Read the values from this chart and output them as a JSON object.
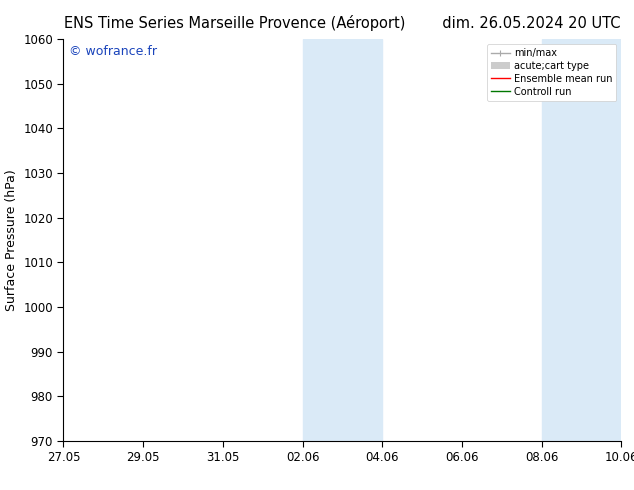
{
  "title_left": "ENS Time Series Marseille Provence (Aéroport)",
  "title_right": "dim. 26.05.2024 20 UTC",
  "ylabel": "Surface Pressure (hPa)",
  "ylim": [
    970,
    1060
  ],
  "yticks": [
    970,
    980,
    990,
    1000,
    1010,
    1020,
    1030,
    1040,
    1050,
    1060
  ],
  "xtick_labels": [
    "27.05",
    "29.05",
    "31.05",
    "02.06",
    "04.06",
    "06.06",
    "08.06",
    "10.06"
  ],
  "watermark": "© wofrance.fr",
  "watermark_color": "#1a44bb",
  "background_color": "#ffffff",
  "shaded_bands": [
    {
      "xmin": 0.4286,
      "xmax": 0.5714
    },
    {
      "xmin": 0.8571,
      "xmax": 1.0
    }
  ],
  "shaded_color": "#daeaf7",
  "legend_items": [
    {
      "label": "min/max",
      "color": "#aaaaaa",
      "lw": 1.0
    },
    {
      "label": "acute;cart type",
      "color": "#cccccc",
      "lw": 6
    },
    {
      "label": "Ensemble mean run",
      "color": "#ff0000",
      "lw": 1.0
    },
    {
      "label": "Controll run",
      "color": "#007700",
      "lw": 1.0
    }
  ],
  "spine_color": "#000000",
  "tick_color": "#000000",
  "tick_fontsize": 8.5,
  "label_fontsize": 9,
  "title_fontsize": 10.5,
  "watermark_fontsize": 9
}
